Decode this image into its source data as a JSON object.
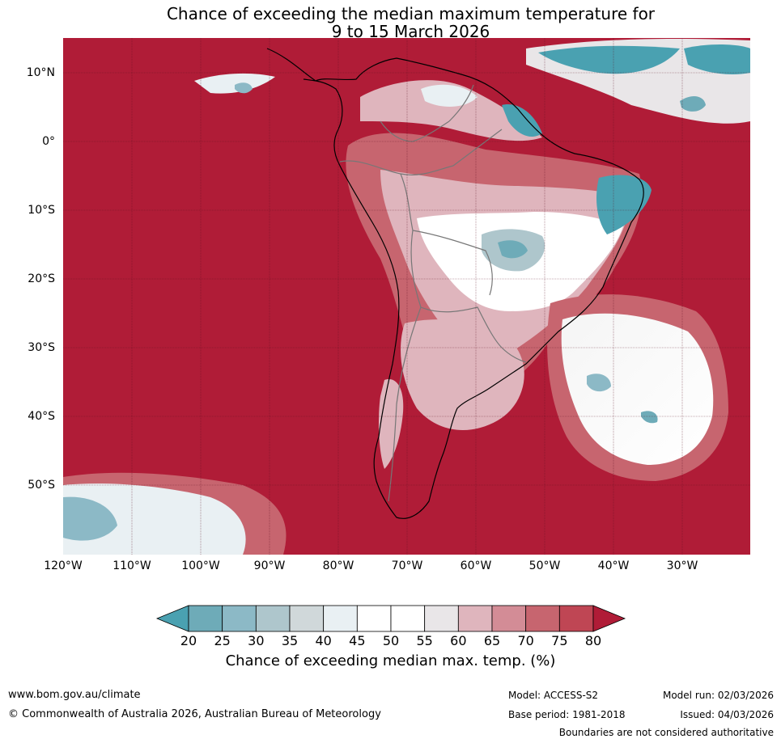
{
  "title": {
    "line1": "Chance of exceeding the median maximum temperature for",
    "line2": "9 to 15 March 2026"
  },
  "latitude_labels": [
    "10°N",
    "0°",
    "10°S",
    "20°S",
    "30°S",
    "40°S",
    "50°S"
  ],
  "longitude_labels": [
    "120°W",
    "110°W",
    "100°W",
    "90°W",
    "80°W",
    "70°W",
    "60°W",
    "50°W",
    "40°W",
    "30°W"
  ],
  "colorbar": {
    "ticks": [
      "20",
      "25",
      "30",
      "35",
      "40",
      "45",
      "50",
      "55",
      "60",
      "65",
      "70",
      "75",
      "80"
    ],
    "colors": [
      "#4aa1b1",
      "#6eabb8",
      "#8cb9c6",
      "#aec6cc",
      "#d0d8da",
      "#e9f0f3",
      "#ffffff",
      "#ffffff",
      "#e9e6e8",
      "#dfb5bd",
      "#d38c96",
      "#c7656f",
      "#bf4654",
      "#b01c37"
    ],
    "label": "Chance of exceeding median max. temp. (%)"
  },
  "footer": {
    "url": "www.bom.gov.au/climate",
    "copyright": "© Commonwealth of Australia 2026, Australian Bureau of Meteorology",
    "model": "Model: ACCESS-S2",
    "base_period": "Base period: 1981-2018",
    "model_run": "Model run: 02/03/2026",
    "issued": "Issued: 04/03/2026",
    "disclaimer": "Boundaries are not considered authoritative"
  }
}
